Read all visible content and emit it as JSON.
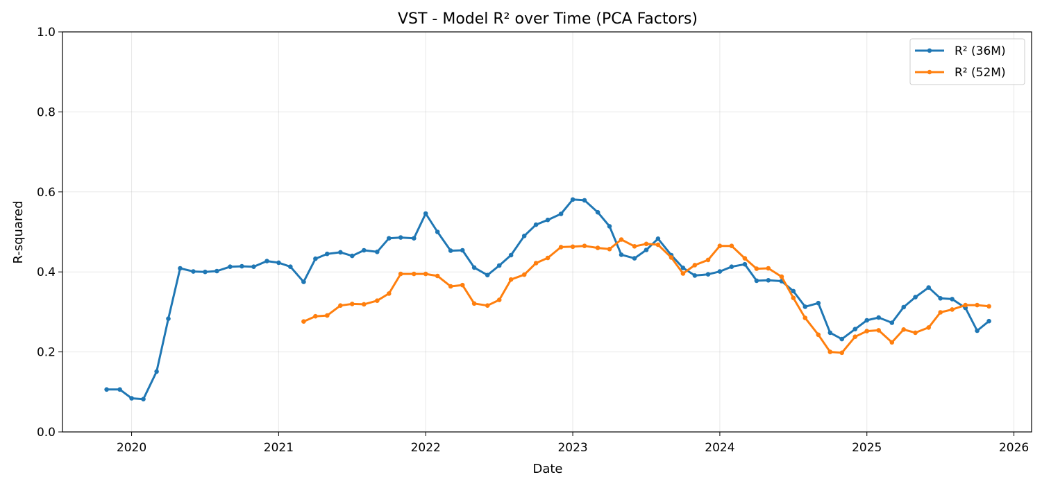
{
  "chart_data": {
    "type": "line",
    "title": "VST - Model R² over Time (PCA Factors)",
    "xlabel": "Date",
    "ylabel": "R-squared",
    "xlim": [
      2019.53,
      2026.12
    ],
    "ylim": [
      0.0,
      1.0
    ],
    "x_ticks": [
      2020,
      2021,
      2022,
      2023,
      2024,
      2025,
      2026
    ],
    "x_tick_labels": [
      "2020",
      "2021",
      "2022",
      "2023",
      "2024",
      "2025",
      "2026"
    ],
    "y_ticks": [
      0.0,
      0.2,
      0.4,
      0.6,
      0.8,
      1.0
    ],
    "y_tick_labels": [
      "0.0",
      "0.2",
      "0.4",
      "0.6",
      "0.8",
      "1.0"
    ],
    "grid": true,
    "legend_position": "top-right",
    "series": [
      {
        "name": "R² (36M)",
        "color": "#1f77b4",
        "x": [
          2019.83,
          2019.92,
          2020.0,
          2020.08,
          2020.17,
          2020.25,
          2020.33,
          2020.42,
          2020.5,
          2020.58,
          2020.67,
          2020.75,
          2020.83,
          2020.92,
          2021.0,
          2021.08,
          2021.17,
          2021.25,
          2021.33,
          2021.42,
          2021.5,
          2021.58,
          2021.67,
          2021.75,
          2021.83,
          2021.92,
          2022.0,
          2022.08,
          2022.17,
          2022.25,
          2022.33,
          2022.42,
          2022.5,
          2022.58,
          2022.67,
          2022.75,
          2022.83,
          2022.92,
          2023.0,
          2023.08,
          2023.17,
          2023.25,
          2023.33,
          2023.42,
          2023.5,
          2023.58,
          2023.67,
          2023.75,
          2023.83,
          2023.92,
          2024.0,
          2024.08,
          2024.17,
          2024.25,
          2024.33,
          2024.42,
          2024.5,
          2024.58,
          2024.67,
          2024.75,
          2024.83,
          2024.92,
          2025.0,
          2025.08,
          2025.17,
          2025.25,
          2025.33,
          2025.42,
          2025.5,
          2025.58,
          2025.67,
          2025.75,
          2025.83
        ],
        "values": [
          0.106,
          0.106,
          0.084,
          0.082,
          0.151,
          0.283,
          0.409,
          0.401,
          0.4,
          0.402,
          0.413,
          0.414,
          0.413,
          0.427,
          0.423,
          0.413,
          0.375,
          0.433,
          0.445,
          0.449,
          0.44,
          0.454,
          0.45,
          0.484,
          0.486,
          0.484,
          0.546,
          0.5,
          0.453,
          0.454,
          0.411,
          0.392,
          0.416,
          0.442,
          0.49,
          0.518,
          0.53,
          0.545,
          0.581,
          0.579,
          0.549,
          0.514,
          0.443,
          0.434,
          0.455,
          0.483,
          0.442,
          0.41,
          0.391,
          0.394,
          0.401,
          0.413,
          0.419,
          0.378,
          0.379,
          0.377,
          0.352,
          0.313,
          0.322,
          0.248,
          0.232,
          0.257,
          0.279,
          0.286,
          0.273,
          0.312,
          0.337,
          0.361,
          0.334,
          0.332,
          0.31,
          0.253,
          0.277
        ]
      },
      {
        "name": "R² (52M)",
        "color": "#ff7f0e",
        "x": [
          2021.17,
          2021.25,
          2021.33,
          2021.42,
          2021.5,
          2021.58,
          2021.67,
          2021.75,
          2021.83,
          2021.92,
          2022.0,
          2022.08,
          2022.17,
          2022.25,
          2022.33,
          2022.42,
          2022.5,
          2022.58,
          2022.67,
          2022.75,
          2022.83,
          2022.92,
          2023.0,
          2023.08,
          2023.17,
          2023.25,
          2023.33,
          2023.42,
          2023.5,
          2023.58,
          2023.67,
          2023.75,
          2023.83,
          2023.92,
          2024.0,
          2024.08,
          2024.17,
          2024.25,
          2024.33,
          2024.42,
          2024.5,
          2024.58,
          2024.67,
          2024.75,
          2024.83,
          2024.92,
          2025.0,
          2025.08,
          2025.17,
          2025.25,
          2025.33,
          2025.42,
          2025.5,
          2025.58,
          2025.67,
          2025.75,
          2025.83
        ],
        "values": [
          0.276,
          0.289,
          0.291,
          0.316,
          0.32,
          0.319,
          0.328,
          0.346,
          0.395,
          0.395,
          0.395,
          0.39,
          0.364,
          0.367,
          0.321,
          0.316,
          0.33,
          0.381,
          0.393,
          0.422,
          0.435,
          0.462,
          0.463,
          0.465,
          0.46,
          0.457,
          0.481,
          0.464,
          0.47,
          0.468,
          0.436,
          0.396,
          0.417,
          0.43,
          0.465,
          0.465,
          0.434,
          0.408,
          0.409,
          0.388,
          0.335,
          0.285,
          0.243,
          0.2,
          0.198,
          0.238,
          0.252,
          0.254,
          0.224,
          0.256,
          0.248,
          0.261,
          0.299,
          0.306,
          0.317,
          0.317,
          0.314
        ]
      }
    ]
  }
}
